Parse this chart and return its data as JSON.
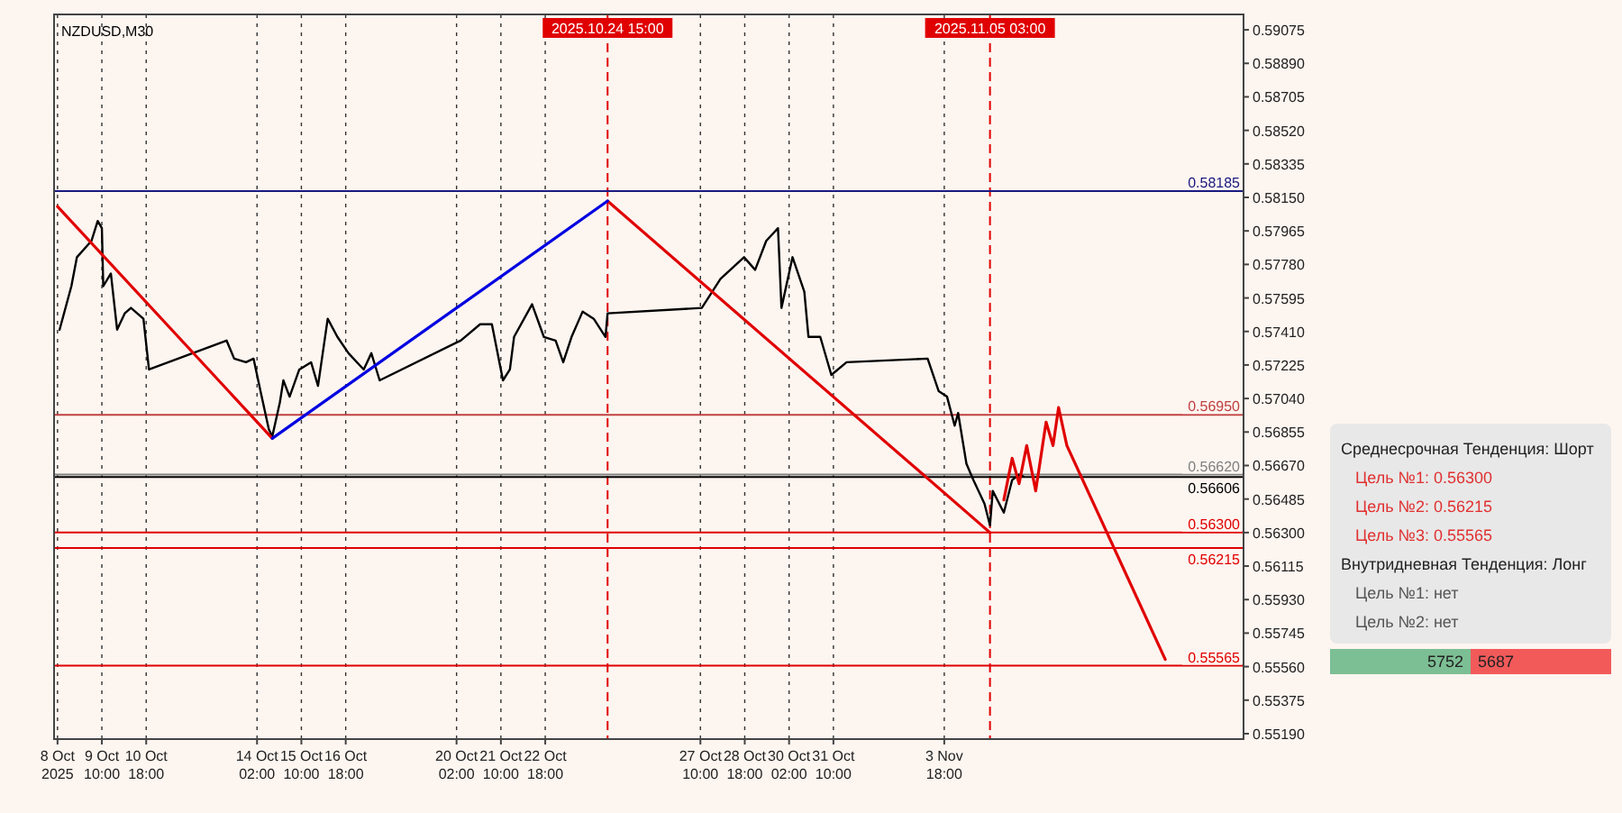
{
  "chart_data": {
    "type": "line",
    "title": "NZDUSD,M30",
    "xlim": [
      "2025-10-07T23:30",
      "2025-11-12T18:00"
    ],
    "xticks": [
      {
        "value": "2025-10-08T02:00",
        "label": "8 Oct 2025"
      },
      {
        "value": "2025-10-09T10:00",
        "label": "9 Oct 10:00"
      },
      {
        "value": "2025-10-10T18:00",
        "label": "10 Oct 18:00"
      },
      {
        "value": "2025-10-14T02:00",
        "label": "14 Oct 02:00"
      },
      {
        "value": "2025-10-15T10:00",
        "label": "15 Oct 10:00"
      },
      {
        "value": "2025-10-16T18:00",
        "label": "16 Oct 18:00"
      },
      {
        "value": "2025-10-20T02:00",
        "label": "20 Oct 02:00"
      },
      {
        "value": "2025-10-21T10:00",
        "label": "21 Oct 10:00"
      },
      {
        "value": "2025-10-22T18:00",
        "label": "22 Oct 18:00"
      },
      {
        "value": "2025-10-27T10:00",
        "label": "27 Oct 10:00"
      },
      {
        "value": "2025-10-28T18:00",
        "label": "28 Oct 18:00"
      },
      {
        "value": "2025-10-30T02:00",
        "label": "30 Oct 02:00"
      },
      {
        "value": "2025-10-31T10:00",
        "label": "31 Oct 10:00"
      },
      {
        "value": "2025-11-03T18:00",
        "label": "3 Nov 18:00"
      }
    ],
    "ylim": [
      0.5516,
      0.5916
    ],
    "yticks": [
      {
        "value": 0.59075,
        "label": "0.59075"
      },
      {
        "value": 0.5889,
        "label": "0.58890"
      },
      {
        "value": 0.58705,
        "label": "0.58705"
      },
      {
        "value": 0.5852,
        "label": "0.58520"
      },
      {
        "value": 0.58335,
        "label": "0.58335"
      },
      {
        "value": 0.5815,
        "label": "0.58150"
      },
      {
        "value": 0.57965,
        "label": "0.57965"
      },
      {
        "value": 0.5778,
        "label": "0.57780"
      },
      {
        "value": 0.57595,
        "label": "0.57595"
      },
      {
        "value": 0.5741,
        "label": "0.57410"
      },
      {
        "value": 0.57225,
        "label": "0.57225"
      },
      {
        "value": 0.5704,
        "label": "0.57040"
      },
      {
        "value": 0.56855,
        "label": "0.56855"
      },
      {
        "value": 0.5667,
        "label": "0.56670"
      },
      {
        "value": 0.56485,
        "label": "0.56485"
      },
      {
        "value": 0.563,
        "label": "0.56300"
      },
      {
        "value": 0.56115,
        "label": "0.56115"
      },
      {
        "value": 0.5593,
        "label": "0.55930"
      },
      {
        "value": 0.55745,
        "label": "0.55745"
      },
      {
        "value": 0.5556,
        "label": "0.55560"
      },
      {
        "value": 0.55375,
        "label": "0.55375"
      },
      {
        "value": 0.5519,
        "label": "0.55190"
      }
    ],
    "grid": "x",
    "series": [
      {
        "color": "#000000",
        "x": [
          "2025-10-08T03:30",
          "2025-10-08T12:00",
          "2025-10-08T16:00",
          "2025-10-09T02:30",
          "2025-10-09T07:00",
          "2025-10-09T10:00",
          "2025-10-09T11:00",
          "2025-10-09T16:30",
          "2025-10-09T21:00",
          "2025-10-10T02:30",
          "2025-10-10T07:00",
          "2025-10-10T16:00",
          "2025-10-10T20:00",
          "2025-10-13T04:00",
          "2025-10-13T09:30",
          "2025-10-13T18:00",
          "2025-10-13T23:30",
          "2025-10-14T04:30",
          "2025-10-14T10:30",
          "2025-10-14T13:00",
          "2025-10-14T18:30",
          "2025-10-14T21:00",
          "2025-10-15T01:30",
          "2025-10-15T08:30",
          "2025-10-15T17:00",
          "2025-10-15T22:00",
          "2025-10-16T05:00",
          "2025-10-16T12:00",
          "2025-10-16T20:00",
          "2025-10-17T07:00",
          "2025-10-17T12:30",
          "2025-10-17T18:30",
          "2025-10-20T05:00",
          "2025-10-20T19:00",
          "2025-10-21T03:30",
          "2025-10-21T11:30",
          "2025-10-21T16:30",
          "2025-10-21T19:30",
          "2025-10-22T08:30",
          "2025-10-22T17:00",
          "2025-10-23T01:30",
          "2025-10-23T07:00",
          "2025-10-23T13:00",
          "2025-10-23T21:00",
          "2025-10-24T05:00",
          "2025-10-24T13:30",
          "2025-10-24T15:00",
          "2025-10-27T11:00",
          "2025-10-28T00:30",
          "2025-10-28T17:30",
          "2025-10-29T01:30",
          "2025-10-29T09:30",
          "2025-10-29T18:00",
          "2025-10-29T20:30",
          "2025-10-30T04:30",
          "2025-10-30T13:00",
          "2025-10-30T16:00",
          "2025-10-31T00:30",
          "2025-10-31T08:30",
          "2025-10-31T19:30",
          "2025-11-03T06:00",
          "2025-11-03T14:00",
          "2025-11-03T20:00",
          "2025-11-04T01:30",
          "2025-11-04T04:00",
          "2025-11-04T10:00",
          "2025-11-04T15:00",
          "2025-11-04T23:00",
          "2025-11-05T03:00",
          "2025-11-05T05:00",
          "2025-11-05T13:00",
          "2025-11-05T19:00",
          "2025-11-06T00:00",
          "2025-11-06T03:00"
        ],
        "values": [
          0.5742,
          0.5766,
          0.5782,
          0.5791,
          0.5802,
          0.5798,
          0.5766,
          0.5773,
          0.5742,
          0.5751,
          0.5754,
          0.5748,
          0.572,
          0.5736,
          0.5726,
          0.5724,
          0.5726,
          0.5708,
          0.5687,
          0.5683,
          0.5702,
          0.5714,
          0.5705,
          0.572,
          0.5724,
          0.5711,
          0.5748,
          0.5738,
          0.5729,
          0.572,
          0.5729,
          0.5714,
          0.5736,
          0.5745,
          0.5745,
          0.5714,
          0.572,
          0.5738,
          0.5756,
          0.5738,
          0.5736,
          0.5724,
          0.5738,
          0.5752,
          0.5748,
          0.5738,
          0.5751,
          0.5754,
          0.577,
          0.5782,
          0.5775,
          0.5791,
          0.5798,
          0.5754,
          0.5782,
          0.5763,
          0.5738,
          0.5738,
          0.5717,
          0.5724,
          0.5726,
          0.5708,
          0.5705,
          0.5689,
          0.5696,
          0.5668,
          0.5659,
          0.5646,
          0.5634,
          0.5653,
          0.5641,
          0.5659,
          0.5662,
          0.5661
        ]
      },
      {
        "color": "#e00000",
        "x": [
          "2025-10-08T02:00",
          "2025-10-14T13:00",
          "2025-10-20T02:00",
          "2025-10-24T15:00",
          "2025-11-05T03:00"
        ],
        "values": [
          0.581,
          0.5682,
          null,
          0.5813,
          0.563
        ]
      },
      {
        "color": "#0000e0",
        "x": [
          "2025-10-14T13:00",
          "2025-10-24T15:00"
        ],
        "values": [
          0.5682,
          0.5813
        ]
      },
      {
        "color": "#e00000",
        "x": [
          "2025-11-05T13:00",
          "2025-11-05T19:00",
          "2025-11-06T00:00",
          "2025-11-06T05:30",
          "2025-11-06T12:00",
          "2025-11-06T19:30",
          "2025-11-07T00:30",
          "2025-11-07T04:30",
          "2025-11-07T10:30",
          "2025-11-10T09:30"
        ],
        "values": [
          0.5648,
          0.5671,
          0.5657,
          0.5678,
          0.5653,
          0.5691,
          0.5678,
          0.5699,
          0.5678,
          0.556
        ]
      }
    ],
    "ref_lines": [
      {
        "axis": "y",
        "value": 0.58185,
        "label": "0.58185",
        "color": "#1a1a80"
      },
      {
        "axis": "y",
        "value": 0.5695,
        "label": "0.56950",
        "color": "#c04040"
      },
      {
        "axis": "y",
        "value": 0.5662,
        "label": "0.56620",
        "color": "#808080"
      },
      {
        "axis": "y",
        "value": 0.56606,
        "label": "0.56606",
        "color": "#000000"
      },
      {
        "axis": "y",
        "value": 0.563,
        "label": "0.56300",
        "color": "#e00000"
      },
      {
        "axis": "y",
        "value": 0.56215,
        "label": "0.56215",
        "color": "#e00000"
      },
      {
        "axis": "y",
        "value": 0.55565,
        "label": "0.55565",
        "color": "#e00000"
      },
      {
        "axis": "x",
        "value": "2025-10-24T15:00",
        "label": "2025.10.24 15:00",
        "color": "#e00000",
        "line_style": "dashed"
      },
      {
        "axis": "x",
        "value": "2025-11-05T03:00",
        "label": "2025.11.05 03:00",
        "color": "#e00000",
        "line_style": "dashed"
      }
    ],
    "annotations": [
      "Среднесрочная Тенденция: Шорт",
      "Цель №1: 0.56300",
      "Цель №2: 0.56215",
      "Цель №3: 0.55565",
      "Внутридневная Тенденция: Лонг",
      "Цель №1: нет",
      "Цель №2: нет",
      "5752",
      "5687"
    ]
  }
}
